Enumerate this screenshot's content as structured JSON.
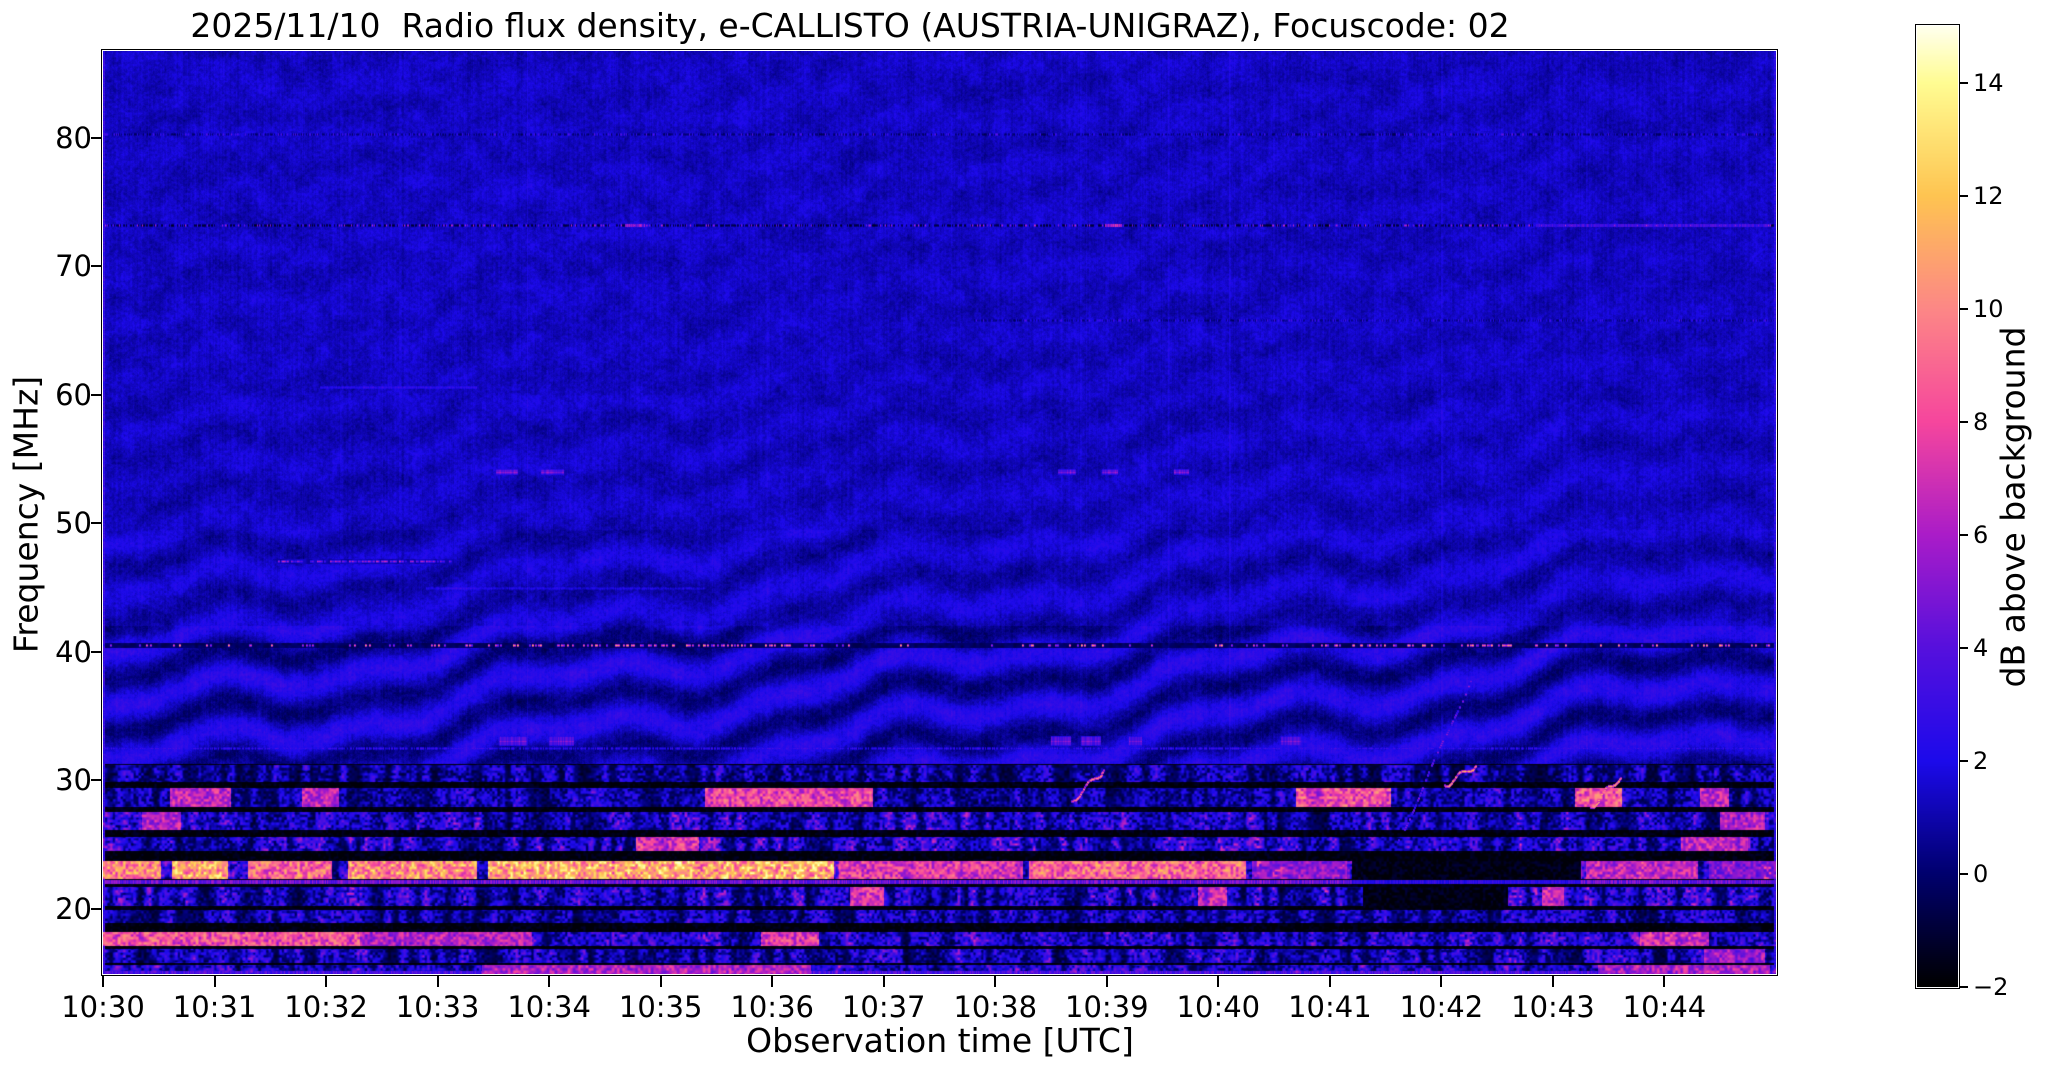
{
  "figure": {
    "background": "#ffffff"
  },
  "station": "AUSTRIA-UNIGRAZ",
  "date": "2025/11/10",
  "focuscode": "02",
  "chart_data": {
    "type": "heatmap",
    "title": "2025/11/10  Radio flux density, e-CALLISTO (AUSTRIA-UNIGRAZ), Focuscode: 02",
    "xlabel": "Observation time [UTC]",
    "ylabel": "Frequency [MHz]",
    "x_start": "10:30",
    "x_end": "10:45",
    "x_span_minutes": 15,
    "x_ticks": [
      "10:30",
      "10:31",
      "10:32",
      "10:33",
      "10:34",
      "10:35",
      "10:36",
      "10:37",
      "10:38",
      "10:39",
      "10:40",
      "10:41",
      "10:42",
      "10:43",
      "10:44"
    ],
    "y_ticks": [
      80,
      70,
      60,
      50,
      40,
      30,
      20
    ],
    "freq_range_mhz": [
      14.93,
      86.75
    ],
    "grid": false,
    "colorbar": {
      "label": "dB above background",
      "vmin": -2,
      "vmax": 15,
      "ticks": [
        [
          14,
          "14"
        ],
        [
          12,
          "12"
        ],
        [
          10,
          "10"
        ],
        [
          8,
          "8"
        ],
        [
          6,
          "6"
        ],
        [
          4,
          "4"
        ],
        [
          2,
          "2"
        ],
        [
          0,
          "0"
        ],
        [
          -2,
          "−2"
        ]
      ]
    },
    "colormap_stops": [
      [
        -2,
        "#000000"
      ],
      [
        0,
        "#00006e"
      ],
      [
        2,
        "#1c0aeb"
      ],
      [
        4,
        "#5610dd"
      ],
      [
        6,
        "#aa1cc8"
      ],
      [
        8,
        "#f6469d"
      ],
      [
        10,
        "#fc8786"
      ],
      [
        12,
        "#fec451"
      ],
      [
        14,
        "#fffc92"
      ],
      [
        15,
        "#ffffee"
      ]
    ],
    "background_db": 1.32,
    "ripple_zones": [
      {
        "f0": 31.3,
        "f1": 42.0,
        "amp": 1.15
      },
      {
        "f0": 42.0,
        "f1": 49.5,
        "amp": 0.6
      },
      {
        "f0": 49.5,
        "f1": 60.0,
        "amp": 0.28
      },
      {
        "f0": 60.0,
        "f1": 86.75,
        "amp": 0.15
      }
    ],
    "lines": [
      {
        "name": "rfi-80mhz",
        "style": "barcode",
        "f": 80.3,
        "amp": 1.3,
        "t0": 0,
        "t1": 15
      },
      {
        "name": "rfi-73mhz",
        "style": "barcode",
        "f": 73.2,
        "amp": 2.4,
        "t0": 0,
        "t1": 15,
        "bright": [
          [
            4.68,
            4.86,
            6
          ],
          [
            8.98,
            9.14,
            7.5
          ],
          [
            12.85,
            14.95,
            4
          ]
        ]
      },
      {
        "name": "rfi-65.8mhz",
        "style": "barcode",
        "f": 65.8,
        "amp": 1.0,
        "t0": 7.8,
        "t1": 15
      },
      {
        "name": "seg-60.6mhz",
        "style": "segment",
        "f": 60.6,
        "amp": 1.5,
        "t0": 1.95,
        "t1": 3.35
      },
      {
        "name": "dots-47mhz",
        "style": "dots",
        "f": 47.1,
        "amp": 5.5,
        "t0": 1.55,
        "t1": 3.15,
        "density": 0.5,
        "dark": 0.6
      },
      {
        "name": "speck-45mhz",
        "style": "segment",
        "f": 45.0,
        "amp": 1.2,
        "t0": 2.9,
        "t1": 5.4
      },
      {
        "name": "dots-40.5mhz",
        "style": "dots",
        "f": 40.55,
        "amp": 9.5,
        "t0": 0,
        "t1": 15,
        "density": 0.11,
        "dark": -0.7
      },
      {
        "name": "dash-54mhz",
        "style": "blocks",
        "f": 54.0,
        "amp": 4.3,
        "h": 0.3,
        "blocks": [
          [
            3.52,
            3.72
          ],
          [
            3.93,
            4.13
          ],
          [
            8.56,
            8.72
          ],
          [
            8.96,
            9.1
          ],
          [
            9.6,
            9.74
          ]
        ]
      },
      {
        "name": "blocks-33mhz",
        "style": "blocks",
        "f": 33.1,
        "amp": 4.0,
        "h": 0.62,
        "blocks": [
          [
            3.55,
            3.8
          ],
          [
            4.0,
            4.22
          ],
          [
            8.5,
            8.68
          ],
          [
            8.77,
            8.95
          ],
          [
            9.2,
            9.32
          ],
          [
            10.56,
            10.74
          ]
        ]
      },
      {
        "name": "line-32.6mhz",
        "style": "speckline",
        "f": 32.55,
        "amp": 2.6,
        "t0": 0,
        "t1": 15
      }
    ],
    "diagonals": [
      {
        "name": "drift-burst",
        "t0": 11.6,
        "f0": 25.2,
        "t1": 12.26,
        "f1": 37.8,
        "amp": 5.2,
        "dotted": true
      },
      {
        "name": "squiggle-1",
        "t0": 8.68,
        "f0": 28.4,
        "t1": 8.97,
        "f1": 30.9,
        "amp": 10,
        "dotted": false
      },
      {
        "name": "squiggle-2",
        "t0": 12.02,
        "f0": 29.6,
        "t1": 12.3,
        "f1": 31.2,
        "amp": 11,
        "dotted": false
      },
      {
        "name": "squiggle-3",
        "t0": 13.33,
        "f0": 27.9,
        "t1": 13.6,
        "f1": 30.3,
        "amp": 11,
        "dotted": false
      }
    ],
    "vlines": [
      2.65,
      3.8,
      5.95,
      8.76,
      9.55,
      10.1,
      12.0,
      13.3
    ],
    "rfi_zone": {
      "f_top": 31.3,
      "pink_line_f": 22.1,
      "bands": [
        {
          "f0": 29.9,
          "f1": 31.2,
          "amp": 3.2
        },
        {
          "f0": 27.9,
          "f1": 29.4,
          "amp": 3.6,
          "hot": [
            [
              0.6,
              1.15,
              8
            ],
            [
              1.78,
              2.12,
              8
            ],
            [
              5.4,
              6.9,
              9.5
            ],
            [
              10.7,
              11.55,
              10
            ],
            [
              13.2,
              13.62,
              10
            ],
            [
              14.32,
              14.58,
              8
            ]
          ]
        },
        {
          "f0": 26.1,
          "f1": 27.5,
          "amp": 4.2,
          "hot": [
            [
              0.35,
              0.7,
              7.5
            ],
            [
              14.5,
              14.9,
              7.5
            ]
          ]
        },
        {
          "f0": 24.5,
          "f1": 25.6,
          "amp": 4.6,
          "hot": [
            [
              4.78,
              5.34,
              9
            ],
            [
              14.15,
              14.75,
              8
            ]
          ]
        },
        {
          "f0": 22.3,
          "f1": 23.7,
          "amp": 6.2,
          "hot": [
            [
              0,
              0.52,
              12
            ],
            [
              0.62,
              1.12,
              13
            ],
            [
              1.3,
              2.05,
              11
            ],
            [
              2.2,
              3.35,
              12.5
            ],
            [
              3.45,
              6.55,
              13.5
            ],
            [
              6.6,
              8.25,
              9
            ],
            [
              8.3,
              10.25,
              11
            ],
            [
              10.3,
              11.15,
              6.5
            ],
            [
              13.3,
              14.3,
              8
            ],
            [
              14.4,
              15,
              6
            ]
          ],
          "cold": [
            [
              11.2,
              13.25
            ]
          ]
        },
        {
          "f0": 20.2,
          "f1": 21.7,
          "amp": 4.4,
          "hot": [
            [
              6.7,
              7.0,
              9
            ],
            [
              9.82,
              10.08,
              8
            ],
            [
              12.9,
              13.1,
              8
            ]
          ],
          "cold": [
            [
              11.3,
              12.6
            ]
          ]
        },
        {
          "f0": 18.9,
          "f1": 19.9,
          "amp": 3.4
        },
        {
          "f0": 17.1,
          "f1": 18.2,
          "amp": 4.6,
          "hot": [
            [
              0,
              2.3,
              10
            ],
            [
              2.3,
              3.85,
              7.5
            ],
            [
              5.9,
              6.42,
              9
            ],
            [
              13.78,
              14.4,
              8.5
            ]
          ]
        },
        {
          "f0": 15.8,
          "f1": 16.9,
          "amp": 3.8,
          "hot": [
            [
              14.35,
              14.9,
              7
            ]
          ]
        },
        {
          "f0": 14.93,
          "f1": 15.6,
          "amp": 4.4,
          "hot": [
            [
              3.4,
              6.35,
              7.5
            ],
            [
              13.4,
              14.95,
              7.5
            ]
          ]
        }
      ]
    }
  }
}
